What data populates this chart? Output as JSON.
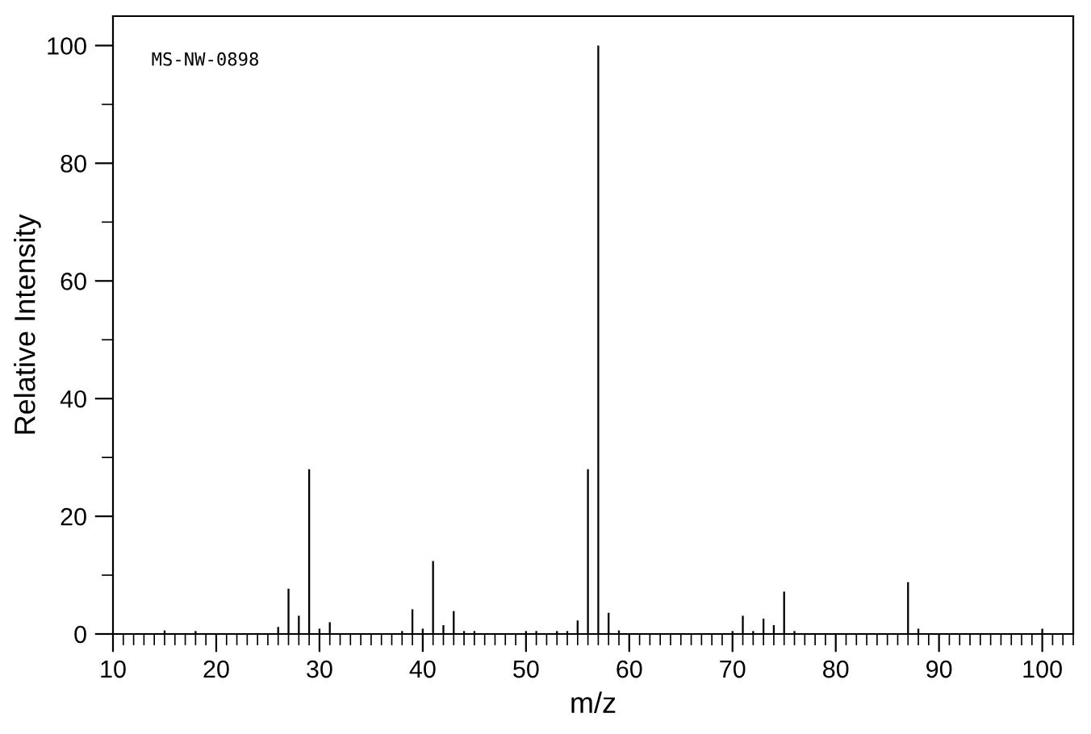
{
  "chart_data": {
    "type": "bar",
    "xlabel": "m/z",
    "ylabel": "Relative Intensity",
    "annotations": [
      "MS-NW-0898"
    ],
    "x": [
      15,
      18,
      26,
      27,
      28,
      29,
      30,
      31,
      38,
      39,
      40,
      41,
      42,
      43,
      44,
      45,
      50,
      51,
      53,
      54,
      55,
      56,
      57,
      58,
      59,
      70,
      71,
      72,
      73,
      74,
      75,
      76,
      87,
      88,
      100
    ],
    "values": [
      0.6,
      0.5,
      1.2,
      7.7,
      3.1,
      28,
      0.9,
      2.0,
      0.5,
      4.2,
      0.9,
      12.4,
      1.5,
      3.9,
      0.5,
      0.5,
      0.5,
      0.5,
      0.5,
      0.5,
      2.3,
      28,
      100,
      3.6,
      0.6,
      0.5,
      3.1,
      0.5,
      2.6,
      1.5,
      7.2,
      0.5,
      8.8,
      0.9,
      0.9
    ],
    "color": "#000000",
    "xlim": [
      10,
      103
    ],
    "xticks": [
      10,
      20,
      30,
      40,
      50,
      60,
      70,
      80,
      90,
      100
    ],
    "ylim": [
      0,
      105
    ],
    "yticks": [
      0,
      20,
      40,
      60,
      80,
      100
    ],
    "grid": false,
    "legend": false
  }
}
